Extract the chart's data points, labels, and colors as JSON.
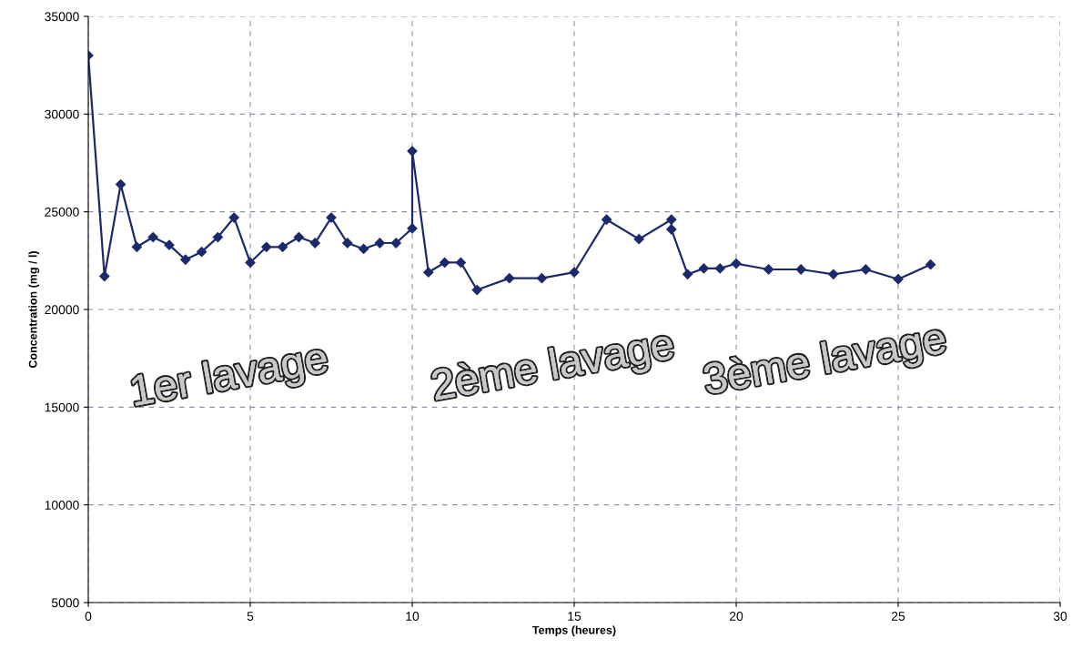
{
  "chart_data": {
    "type": "line",
    "xlabel": "Temps (heures)",
    "ylabel": "Concentration (mg / l)",
    "x": [
      0,
      0.5,
      1,
      1.5,
      2,
      2.5,
      3,
      3.5,
      4,
      4.5,
      5,
      5.5,
      6,
      6.5,
      7,
      7.5,
      8,
      8.5,
      9,
      9.5,
      10,
      10,
      10.5,
      11,
      11.5,
      12,
      13,
      14,
      15,
      16,
      17,
      18,
      18,
      18.5,
      19,
      19.5,
      20,
      21,
      22,
      23,
      24,
      25,
      26
    ],
    "series": [
      {
        "color": "#1c2a6b",
        "values": [
          33000,
          21700,
          26400,
          23200,
          23700,
          23300,
          22550,
          22950,
          23700,
          24700,
          22400,
          23200,
          23200,
          23700,
          23400,
          24700,
          23400,
          23100,
          23400,
          23400,
          24150,
          28100,
          21900,
          22400,
          22400,
          21000,
          21600,
          21600,
          21900,
          24600,
          23600,
          24600,
          24100,
          21800,
          22100,
          22100,
          22350,
          22050,
          22050,
          21800,
          22050,
          21550,
          22300
        ]
      }
    ],
    "xlim": [
      0,
      30
    ],
    "xticks": [
      0,
      5,
      10,
      15,
      20,
      25,
      30
    ],
    "ylim": [
      5000,
      35000
    ],
    "yticks": [
      5000,
      10000,
      15000,
      20000,
      25000,
      30000,
      35000
    ],
    "grid": true,
    "marker": "diamond",
    "line_style": "solid",
    "annotations": [
      "1er lavage",
      "2ème lavage",
      "3ème lavage"
    ]
  }
}
